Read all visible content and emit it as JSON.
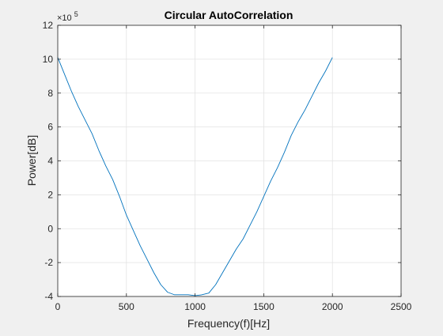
{
  "chart_data": {
    "type": "line",
    "title": "Circular AutoCorrelation",
    "xlabel": "Frequency(f)[Hz]",
    "ylabel": "Power[dB]",
    "xlim": [
      0,
      2500
    ],
    "ylim": [
      -4,
      12
    ],
    "y_exponent_label": "×10",
    "y_exponent_power": "5",
    "xticks": [
      0,
      500,
      1000,
      1500,
      2000,
      2500
    ],
    "xtick_labels": [
      "0",
      "500",
      "1000",
      "1500",
      "2000",
      "2500"
    ],
    "yticks": [
      -4,
      -2,
      0,
      2,
      4,
      6,
      8,
      10,
      12
    ],
    "ytick_labels": [
      "-4",
      "-2",
      "0",
      "2",
      "4",
      "6",
      "8",
      "10",
      "12"
    ],
    "grid": true,
    "colors": {
      "line": "#0072bd",
      "axes_background": "#ffffff",
      "figure_background": "#f0f0f0",
      "grid": "#e3e3e3",
      "axis": "#262626"
    },
    "series": [
      {
        "x": [
          0,
          50,
          100,
          150,
          200,
          250,
          300,
          350,
          400,
          450,
          500,
          550,
          600,
          650,
          700,
          750,
          800,
          850,
          900,
          950,
          1000,
          1050,
          1100,
          1150,
          1200,
          1250,
          1300,
          1350,
          1400,
          1450,
          1500,
          1550,
          1600,
          1650,
          1700,
          1750,
          1800,
          1850,
          1900,
          1950,
          2000
        ],
        "y": [
          10.1,
          9.1,
          8.1,
          7.2,
          6.4,
          5.6,
          4.6,
          3.7,
          2.9,
          1.9,
          0.8,
          -0.1,
          -1.0,
          -1.8,
          -2.6,
          -3.3,
          -3.75,
          -3.9,
          -3.9,
          -3.9,
          -3.95,
          -3.9,
          -3.8,
          -3.3,
          -2.6,
          -1.9,
          -1.2,
          -0.6,
          0.2,
          1.0,
          1.9,
          2.8,
          3.6,
          4.5,
          5.5,
          6.3,
          7.0,
          7.8,
          8.6,
          9.3,
          10.1
        ]
      }
    ]
  }
}
